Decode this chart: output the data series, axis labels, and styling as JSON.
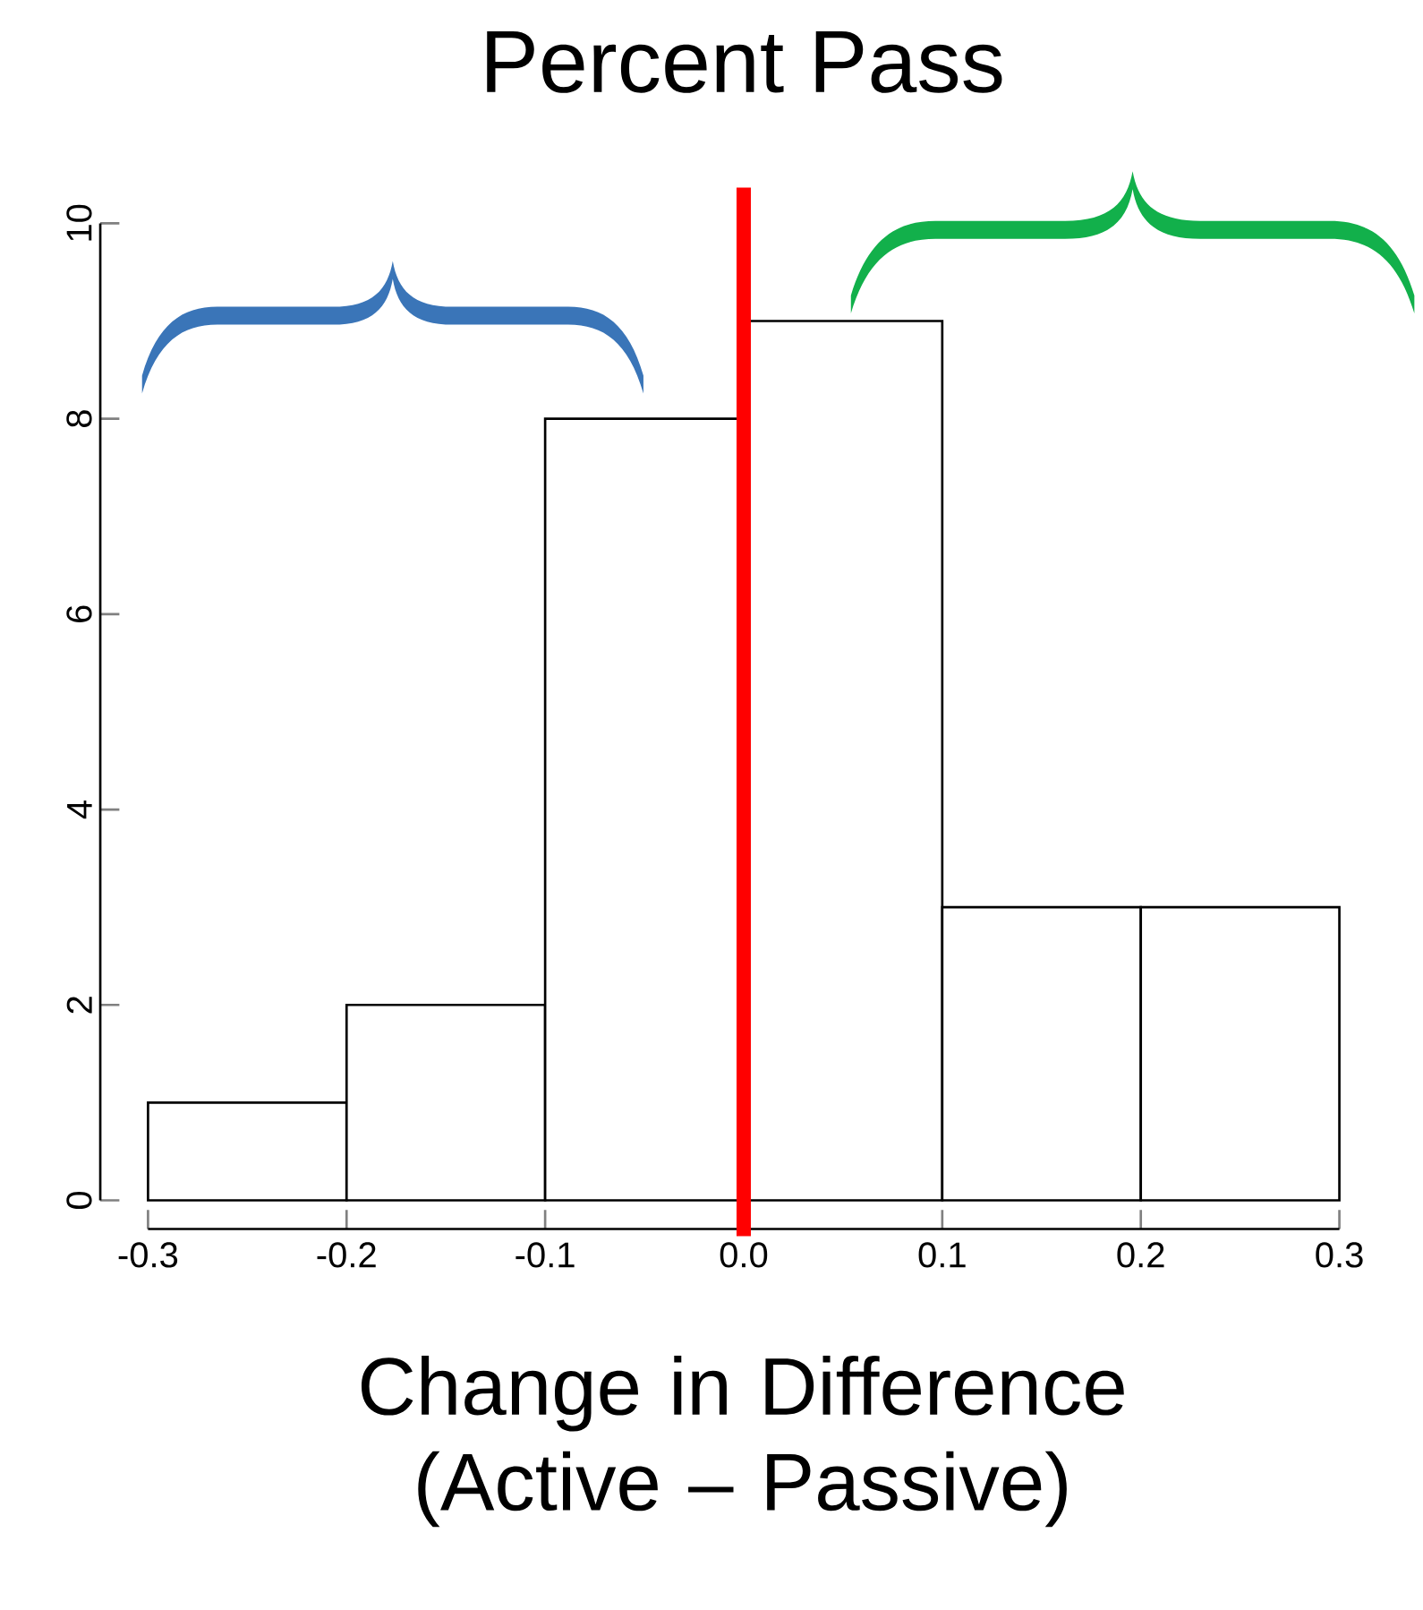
{
  "chart_data": {
    "type": "histogram",
    "title": "Percent Pass",
    "xlabel": "Change in Difference (Active – Passive)",
    "bins": [
      -0.3,
      -0.2,
      -0.1,
      0,
      0.1,
      0.2,
      0.3
    ],
    "values": [
      1,
      2,
      8,
      9,
      3,
      3
    ],
    "color": "#ffffff",
    "xlim": [
      -0.3,
      0.3
    ],
    "ylim": [
      0,
      10
    ],
    "xticks": [
      -0.3,
      -0.2,
      -0.1,
      {
        "value": 0,
        "label": "0.0"
      },
      0.1,
      0.2,
      0.3
    ],
    "yticks": [
      0,
      2,
      4,
      6,
      8,
      10
    ],
    "ref_lines": [
      {
        "axis": "x",
        "value": 0,
        "color": "#ff0000"
      }
    ]
  }
}
